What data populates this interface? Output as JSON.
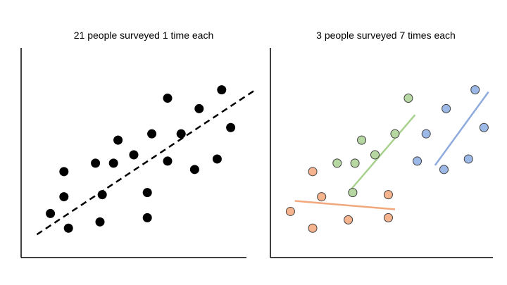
{
  "colors": {
    "axis": "#000000",
    "dot_black": "#000000",
    "orange_fill": "#f5b38e",
    "orange_line": "#f0a87c",
    "green_fill": "#b6d7a2",
    "green_line": "#a9d18e",
    "blue_fill": "#9bb8e6",
    "blue_line": "#8faadc",
    "outline": "#404040"
  },
  "chart_data": [
    {
      "type": "scatter",
      "title": "21 people surveyed 1 time each",
      "xlabel": "",
      "ylabel": "",
      "xlim": [
        0,
        10
      ],
      "ylim": [
        0,
        10
      ],
      "grid": false,
      "series": [
        {
          "color": "#000000",
          "points": [
            [
              1.3,
              2.1
            ],
            [
              2.1,
              1.4
            ],
            [
              1.9,
              2.9
            ],
            [
              1.9,
              4.1
            ],
            [
              3.3,
              4.5
            ],
            [
              3.6,
              3.0
            ],
            [
              3.5,
              1.7
            ],
            [
              4.1,
              4.5
            ],
            [
              4.3,
              5.6
            ],
            [
              5.0,
              4.9
            ],
            [
              5.6,
              3.1
            ],
            [
              5.6,
              1.9
            ],
            [
              5.8,
              5.9
            ],
            [
              6.5,
              4.6
            ],
            [
              6.5,
              7.6
            ],
            [
              7.1,
              5.9
            ],
            [
              7.7,
              4.2
            ],
            [
              7.9,
              7.1
            ],
            [
              8.7,
              4.7
            ],
            [
              8.9,
              8.0
            ],
            [
              9.3,
              6.2
            ]
          ]
        }
      ],
      "trend_lines": [
        {
          "style": "dashed",
          "color": "#000000",
          "from": [
            0.7,
            1.1
          ],
          "to": [
            10.4,
            8.0
          ]
        }
      ]
    },
    {
      "type": "scatter",
      "title": "3 people surveyed 7 times each",
      "xlabel": "",
      "ylabel": "",
      "xlim": [
        0,
        10
      ],
      "ylim": [
        0,
        10
      ],
      "grid": false,
      "series": [
        {
          "color": "#f5b38e",
          "points": [
            [
              0.9,
              2.2
            ],
            [
              1.9,
              4.1
            ],
            [
              2.3,
              2.9
            ],
            [
              1.9,
              1.4
            ],
            [
              3.5,
              1.8
            ],
            [
              5.3,
              3.0
            ],
            [
              5.3,
              1.9
            ]
          ],
          "trend_line": {
            "from": [
              1.1,
              2.7
            ],
            "to": [
              5.6,
              2.3
            ]
          }
        },
        {
          "color": "#b6d7a2",
          "points": [
            [
              3.0,
              4.5
            ],
            [
              3.7,
              3.1
            ],
            [
              4.1,
              5.6
            ],
            [
              4.7,
              4.9
            ],
            [
              5.6,
              5.9
            ],
            [
              6.2,
              7.6
            ],
            [
              3.8,
              4.5
            ]
          ],
          "trend_line": {
            "from": [
              3.5,
              3.1
            ],
            "to": [
              6.5,
              6.8
            ]
          }
        },
        {
          "color": "#9bb8e6",
          "points": [
            [
              6.6,
              4.6
            ],
            [
              7.0,
              5.9
            ],
            [
              7.8,
              4.2
            ],
            [
              7.9,
              7.1
            ],
            [
              8.9,
              4.7
            ],
            [
              9.2,
              8.0
            ],
            [
              9.6,
              6.2
            ]
          ],
          "trend_line": {
            "from": [
              7.4,
              4.4
            ],
            "to": [
              9.8,
              7.9
            ]
          }
        }
      ]
    }
  ]
}
